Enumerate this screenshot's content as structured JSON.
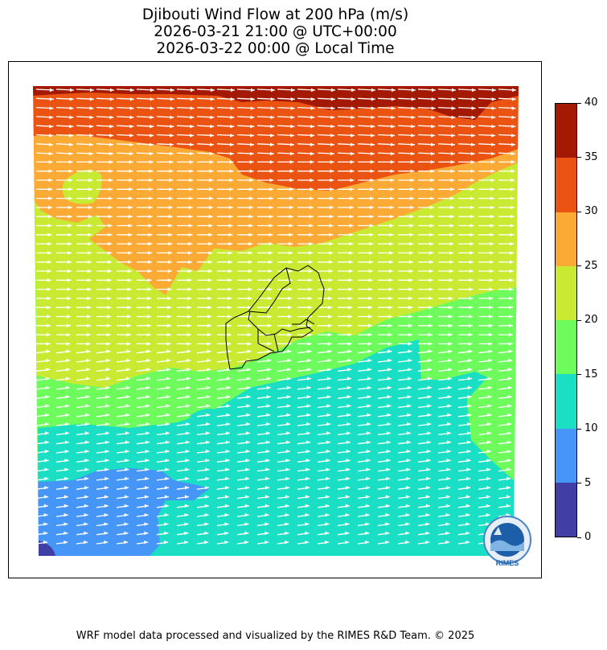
{
  "title": {
    "line1": "Djibouti Wind Flow at 200 hPa (m/s)",
    "line2": "2026-03-21 21:00 @ UTC+00:00",
    "line3": "2026-03-22 00:00 @ Local Time"
  },
  "colorbar": {
    "levels": [
      {
        "min": 0,
        "max": 5,
        "color": "#3f3fa6"
      },
      {
        "min": 5,
        "max": 10,
        "color": "#4596f7"
      },
      {
        "min": 10,
        "max": 15,
        "color": "#1bdfc4"
      },
      {
        "min": 15,
        "max": 20,
        "color": "#6dfc5b"
      },
      {
        "min": 20,
        "max": 25,
        "color": "#c9ea33"
      },
      {
        "min": 25,
        "max": 30,
        "color": "#fbaa36"
      },
      {
        "min": 30,
        "max": 35,
        "color": "#ea5312"
      },
      {
        "min": 35,
        "max": 40,
        "color": "#a41903"
      }
    ],
    "tick_labels": [
      "0",
      "5",
      "10",
      "15",
      "20",
      "25",
      "30",
      "35",
      "40"
    ]
  },
  "map": {
    "wind_direction": "westerly (west to east)",
    "arrow_color": "#ffffff",
    "country_outline": "Djibouti"
  },
  "logo": {
    "text": "RIMES"
  },
  "footer": "WRF model data processed and visualized by the RIMES R&D Team. © 2025"
}
